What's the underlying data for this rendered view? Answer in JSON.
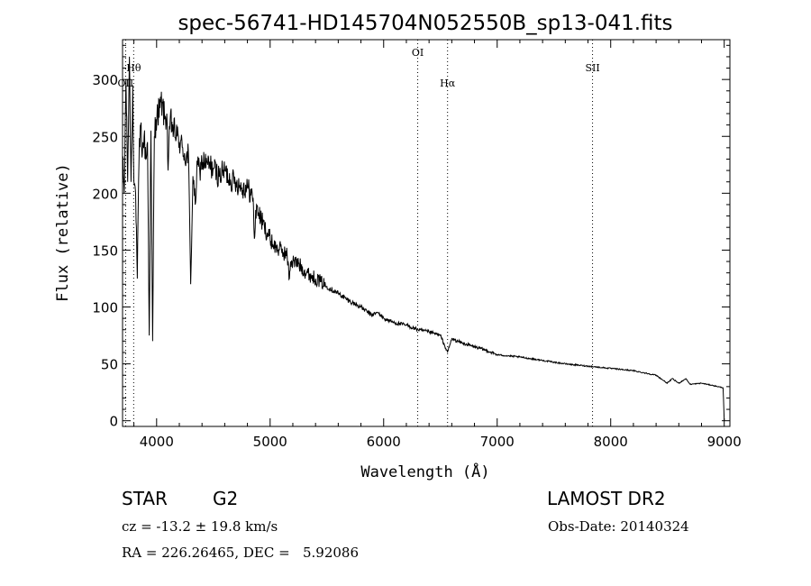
{
  "chart_data": {
    "type": "line",
    "title": "spec-56741-HD145704N052550B_sp13-041.fits",
    "xlabel": "Wavelength (Å)",
    "ylabel": "Flux (relative)",
    "xlim": [
      3700,
      9050
    ],
    "ylim": [
      -5,
      335
    ],
    "xticks": [
      4000,
      5000,
      6000,
      7000,
      8000,
      9000
    ],
    "yticks": [
      0,
      50,
      100,
      150,
      200,
      250,
      300
    ],
    "grid": false,
    "series": [
      {
        "name": "flux",
        "x": [
          3700,
          3715,
          3730,
          3745,
          3760,
          3775,
          3790,
          3800,
          3815,
          3830,
          3845,
          3860,
          3875,
          3890,
          3905,
          3920,
          3935,
          3950,
          3965,
          3980,
          3995,
          4010,
          4030,
          4050,
          4070,
          4090,
          4101,
          4120,
          4150,
          4180,
          4200,
          4230,
          4260,
          4280,
          4300,
          4320,
          4340,
          4360,
          4380,
          4400,
          4450,
          4500,
          4550,
          4600,
          4650,
          4700,
          4750,
          4800,
          4850,
          4861,
          4880,
          4900,
          4950,
          5000,
          5050,
          5100,
          5150,
          5170,
          5180,
          5200,
          5250,
          5300,
          5350,
          5400,
          5450,
          5500,
          5600,
          5700,
          5800,
          5890,
          5950,
          6000,
          6100,
          6200,
          6300,
          6400,
          6500,
          6562,
          6600,
          6700,
          6800,
          6900,
          7000,
          7200,
          7400,
          7600,
          7800,
          8000,
          8200,
          8400,
          8498,
          8542,
          8600,
          8662,
          8700,
          8800,
          8900,
          8990,
          9000
        ],
        "y": [
          230,
          200,
          300,
          210,
          320,
          210,
          295,
          210,
          200,
          125,
          230,
          260,
          235,
          250,
          230,
          245,
          75,
          255,
          70,
          250,
          265,
          270,
          275,
          280,
          265,
          270,
          220,
          265,
          255,
          250,
          245,
          240,
          230,
          235,
          120,
          215,
          190,
          225,
          220,
          228,
          225,
          222,
          215,
          220,
          212,
          210,
          205,
          205,
          196,
          160,
          190,
          182,
          170,
          160,
          152,
          150,
          145,
          125,
          140,
          140,
          138,
          132,
          128,
          125,
          122,
          118,
          112,
          105,
          100,
          93,
          95,
          90,
          86,
          84,
          80,
          78,
          75,
          60,
          72,
          68,
          65,
          62,
          58,
          56,
          53,
          50,
          48,
          46,
          44,
          40,
          33,
          37,
          33,
          37,
          32,
          33,
          31,
          29,
          0
        ]
      }
    ],
    "line_markers": [
      {
        "label": "Hθ",
        "x": 3798,
        "row": "upper"
      },
      {
        "label": "OII",
        "x": 3727,
        "row": "lower"
      },
      {
        "label": "OI",
        "x": 6300,
        "row": "top"
      },
      {
        "label": "Hα",
        "x": 6563,
        "row": "lower"
      },
      {
        "label": "SII",
        "x": 7840,
        "row": "upper"
      }
    ]
  },
  "info": {
    "object_class": "STAR",
    "subclass": "G2",
    "redshift": "cz = -13.2 ± 19.8 km/s",
    "coords": "RA = 226.26465, DEC =   5.92086",
    "survey": "LAMOST DR2",
    "obs_date": "Obs-Date: 20140324"
  }
}
